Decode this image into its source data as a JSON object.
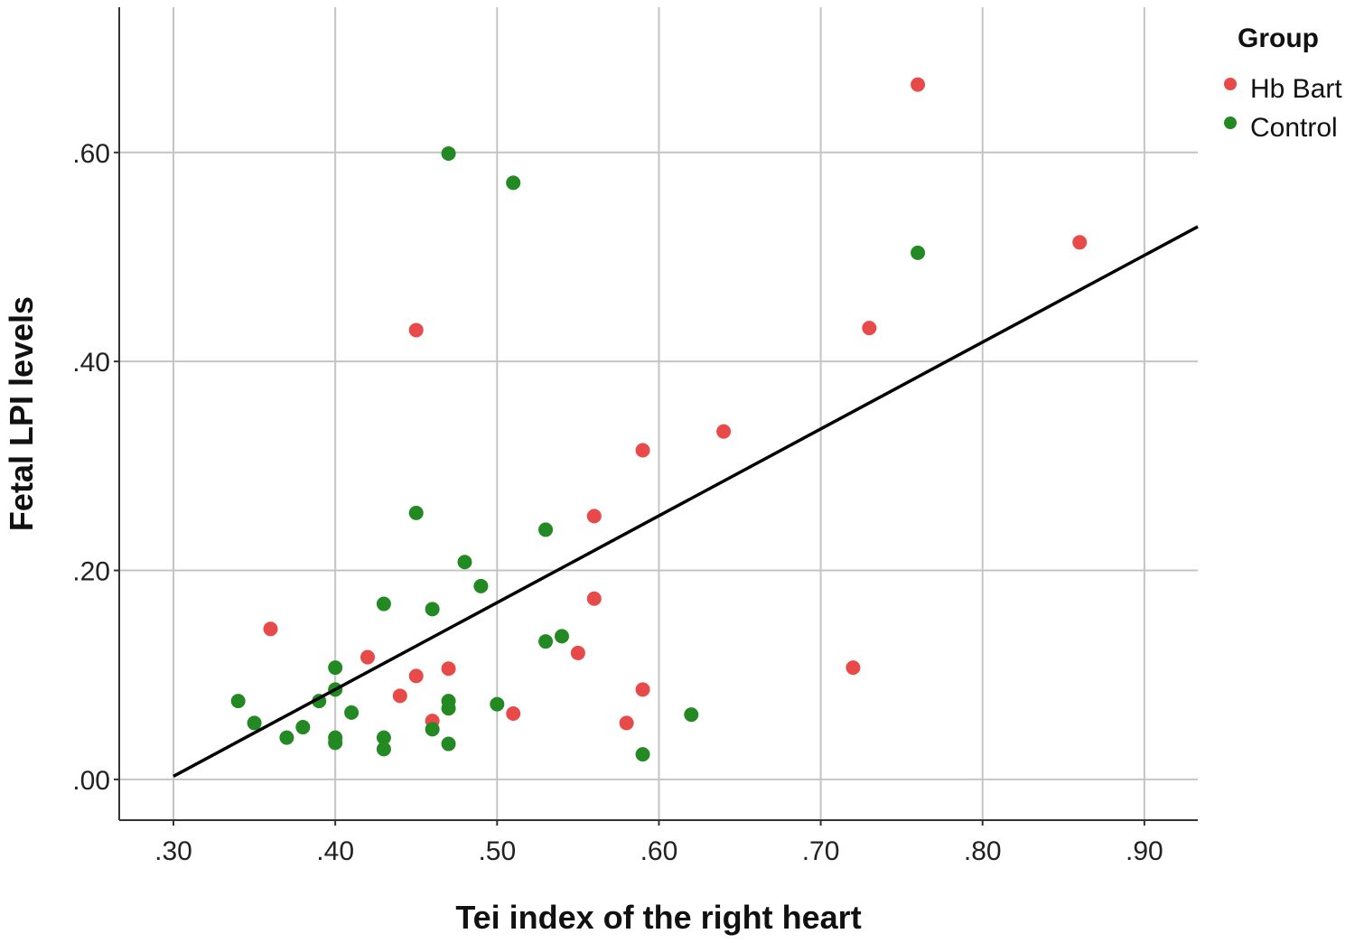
{
  "chart_data": {
    "type": "scatter",
    "title": "",
    "xlabel": "Tei index of the right heart",
    "ylabel": "Fetal LPI levels",
    "xlim": [
      0.2665,
      0.933
    ],
    "ylim": [
      -0.039,
      0.739
    ],
    "xticks": [
      0.3,
      0.4,
      0.5,
      0.6,
      0.7,
      0.8,
      0.9
    ],
    "xtick_labels": [
      ".30",
      ".40",
      ".50",
      ".60",
      ".70",
      ".80",
      ".90"
    ],
    "yticks": [
      0.0,
      0.2,
      0.4,
      0.6
    ],
    "ytick_labels": [
      ".00",
      ".20",
      ".40",
      ".60"
    ],
    "grid": true,
    "legend": {
      "title": "Group",
      "placement": "top-right"
    },
    "series": [
      {
        "name": "Hb Bart",
        "color": "#e84a4a",
        "points": [
          [
            0.76,
            0.665
          ],
          [
            0.86,
            0.514
          ],
          [
            0.73,
            0.432
          ],
          [
            0.45,
            0.43
          ],
          [
            0.64,
            0.333
          ],
          [
            0.59,
            0.315
          ],
          [
            0.56,
            0.252
          ],
          [
            0.56,
            0.173
          ],
          [
            0.36,
            0.144
          ],
          [
            0.55,
            0.121
          ],
          [
            0.42,
            0.117
          ],
          [
            0.72,
            0.107
          ],
          [
            0.47,
            0.106
          ],
          [
            0.45,
            0.099
          ],
          [
            0.59,
            0.086
          ],
          [
            0.44,
            0.08
          ],
          [
            0.51,
            0.063
          ],
          [
            0.46,
            0.056
          ],
          [
            0.58,
            0.054
          ]
        ]
      },
      {
        "name": "Control",
        "color": "#238a23",
        "points": [
          [
            0.47,
            0.599
          ],
          [
            0.51,
            0.571
          ],
          [
            0.76,
            0.504
          ],
          [
            0.45,
            0.255
          ],
          [
            0.53,
            0.239
          ],
          [
            0.48,
            0.208
          ],
          [
            0.49,
            0.185
          ],
          [
            0.43,
            0.168
          ],
          [
            0.46,
            0.163
          ],
          [
            0.54,
            0.137
          ],
          [
            0.53,
            0.132
          ],
          [
            0.4,
            0.107
          ],
          [
            0.4,
            0.086
          ],
          [
            0.34,
            0.075
          ],
          [
            0.39,
            0.075
          ],
          [
            0.47,
            0.075
          ],
          [
            0.5,
            0.072
          ],
          [
            0.47,
            0.068
          ],
          [
            0.41,
            0.064
          ],
          [
            0.62,
            0.062
          ],
          [
            0.35,
            0.054
          ],
          [
            0.38,
            0.05
          ],
          [
            0.46,
            0.048
          ],
          [
            0.37,
            0.04
          ],
          [
            0.43,
            0.04
          ],
          [
            0.4,
            0.04
          ],
          [
            0.4,
            0.035
          ],
          [
            0.47,
            0.034
          ],
          [
            0.43,
            0.029
          ],
          [
            0.59,
            0.024
          ]
        ]
      }
    ],
    "fit_line": {
      "x": [
        0.3,
        0.933
      ],
      "y": [
        0.003,
        0.529
      ],
      "color": "#000000"
    }
  }
}
